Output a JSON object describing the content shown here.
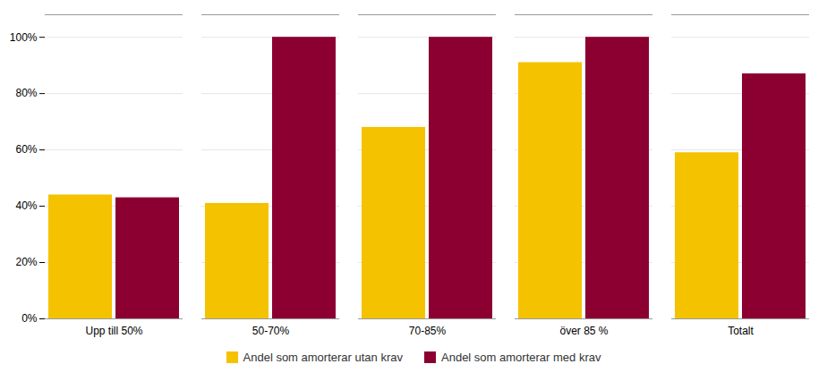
{
  "chart_data": {
    "type": "bar",
    "categories": [
      "Upp till 50%",
      "50-70%",
      "70-85%",
      "över 85 %",
      "Totalt"
    ],
    "series": [
      {
        "name": "Andel som amorterar utan krav",
        "color": "#F5C200",
        "values": [
          0.44,
          0.41,
          0.68,
          0.91,
          0.59
        ]
      },
      {
        "name": "Andel som amorterar med krav",
        "color": "#8B0030",
        "values": [
          0.43,
          1.0,
          1.0,
          1.0,
          0.87
        ]
      }
    ],
    "ylim": [
      0,
      1.08
    ],
    "yticks": [
      {
        "value": 0,
        "label": "0%"
      },
      {
        "value": 0.2,
        "label": "20%"
      },
      {
        "value": 0.4,
        "label": "40%"
      },
      {
        "value": 0.6,
        "label": "60%"
      },
      {
        "value": 0.8,
        "label": "80%"
      },
      {
        "value": 1.0,
        "label": "100%"
      }
    ],
    "grid": true,
    "legend": "bottom"
  }
}
